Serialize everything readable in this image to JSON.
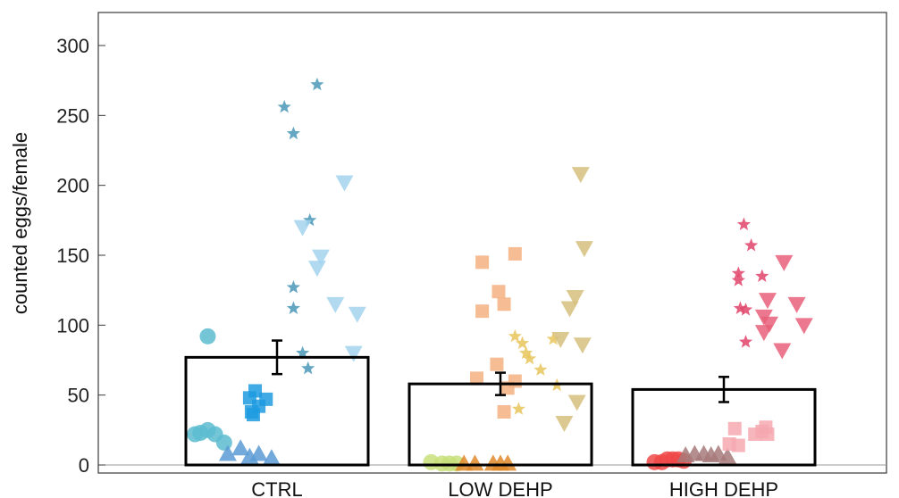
{
  "chart_data": {
    "type": "bar",
    "title": "",
    "xlabel": "",
    "ylabel": "counted eggs/female",
    "ylim": [
      -10,
      325
    ],
    "yticks": [
      0,
      50,
      100,
      150,
      200,
      250,
      300
    ],
    "grid": false,
    "categories": [
      "CTRL",
      "LOW DEHP",
      "HIGH DEHP"
    ],
    "means": [
      77,
      58,
      54
    ],
    "errors": [
      12,
      8,
      9
    ],
    "series": [
      {
        "group": "CTRL",
        "marker": "circle",
        "color": "#5cbcd0",
        "points": [
          [
            -0.38,
            92
          ],
          [
            -0.42,
            23
          ],
          [
            -0.38,
            25
          ],
          [
            -0.34,
            22
          ],
          [
            -0.29,
            16
          ],
          [
            -0.45,
            22
          ]
        ]
      },
      {
        "group": "CTRL",
        "marker": "triangle-up",
        "color": "#5b9bd5",
        "points": [
          [
            -0.27,
            8
          ],
          [
            -0.2,
            12
          ],
          [
            -0.15,
            6
          ],
          [
            -0.1,
            8
          ],
          [
            -0.03,
            5
          ]
        ]
      },
      {
        "group": "CTRL",
        "marker": "square",
        "color": "#1f9be0",
        "points": [
          [
            -0.15,
            48
          ],
          [
            -0.12,
            53
          ],
          [
            -0.1,
            42
          ],
          [
            -0.13,
            36
          ],
          [
            -0.06,
            47
          ],
          [
            -0.14,
            38
          ]
        ]
      },
      {
        "group": "CTRL",
        "marker": "star",
        "color": "#4a96b8",
        "points": [
          [
            0.04,
            256
          ],
          [
            0.09,
            237
          ],
          [
            0.22,
            272
          ],
          [
            0.18,
            175
          ],
          [
            0.09,
            127
          ],
          [
            0.09,
            112
          ],
          [
            0.14,
            80
          ],
          [
            0.17,
            69
          ]
        ]
      },
      {
        "group": "CTRL",
        "marker": "triangle-down",
        "color": "#a3d3ee",
        "points": [
          [
            0.37,
            202
          ],
          [
            0.14,
            170
          ],
          [
            0.24,
            149
          ],
          [
            0.22,
            141
          ],
          [
            0.32,
            115
          ],
          [
            0.44,
            108
          ],
          [
            0.42,
            80
          ]
        ]
      },
      {
        "group": "LOW DEHP",
        "marker": "circle",
        "color": "#c8e07a",
        "points": [
          [
            -0.38,
            2
          ],
          [
            -0.32,
            1
          ],
          [
            -0.28,
            1
          ],
          [
            -0.24,
            1
          ]
        ]
      },
      {
        "group": "LOW DEHP",
        "marker": "triangle-up",
        "color": "#e0882a",
        "points": [
          [
            -0.2,
            1
          ],
          [
            -0.14,
            1
          ],
          [
            -0.04,
            1
          ],
          [
            0.0,
            1
          ],
          [
            0.04,
            1
          ]
        ]
      },
      {
        "group": "LOW DEHP",
        "marker": "square",
        "color": "#f5b283",
        "points": [
          [
            -0.1,
            145
          ],
          [
            0.08,
            151
          ],
          [
            -0.01,
            124
          ],
          [
            0.02,
            115
          ],
          [
            -0.1,
            110
          ],
          [
            -0.02,
            72
          ],
          [
            -0.13,
            62
          ],
          [
            0.08,
            60
          ],
          [
            0.04,
            55
          ],
          [
            0.02,
            38
          ]
        ]
      },
      {
        "group": "LOW DEHP",
        "marker": "star",
        "color": "#e8c45a",
        "points": [
          [
            0.08,
            92
          ],
          [
            0.12,
            87
          ],
          [
            0.14,
            80
          ],
          [
            0.16,
            76
          ],
          [
            0.22,
            68
          ],
          [
            0.1,
            40
          ],
          [
            0.29,
            90
          ],
          [
            0.31,
            57
          ]
        ]
      },
      {
        "group": "LOW DEHP",
        "marker": "triangle-down",
        "color": "#d6c07e",
        "points": [
          [
            0.44,
            208
          ],
          [
            0.46,
            155
          ],
          [
            0.41,
            120
          ],
          [
            0.38,
            112
          ],
          [
            0.33,
            90
          ],
          [
            0.45,
            86
          ],
          [
            0.42,
            45
          ],
          [
            0.35,
            30
          ]
        ]
      },
      {
        "group": "HIGH DEHP",
        "marker": "circle",
        "color": "#f04848",
        "points": [
          [
            -0.38,
            2
          ],
          [
            -0.34,
            2
          ],
          [
            -0.31,
            4
          ],
          [
            -0.28,
            4
          ],
          [
            -0.25,
            4
          ],
          [
            -0.22,
            3
          ]
        ]
      },
      {
        "group": "HIGH DEHP",
        "marker": "triangle-up",
        "color": "#a77a7a",
        "points": [
          [
            -0.21,
            7
          ],
          [
            -0.16,
            8
          ],
          [
            -0.11,
            8
          ],
          [
            -0.07,
            7
          ],
          [
            -0.03,
            8
          ],
          [
            0.02,
            6
          ]
        ]
      },
      {
        "group": "HIGH DEHP",
        "marker": "square",
        "color": "#f6a8b0",
        "points": [
          [
            0.06,
            26
          ],
          [
            0.03,
            15
          ],
          [
            0.08,
            14
          ],
          [
            0.17,
            22
          ],
          [
            0.21,
            24
          ],
          [
            0.23,
            27
          ],
          [
            0.24,
            22
          ]
        ]
      },
      {
        "group": "HIGH DEHP",
        "marker": "star",
        "color": "#e0446a",
        "points": [
          [
            0.11,
            172
          ],
          [
            0.15,
            157
          ],
          [
            0.08,
            137
          ],
          [
            0.08,
            132
          ],
          [
            0.09,
            112
          ],
          [
            0.12,
            111
          ],
          [
            0.21,
            135
          ],
          [
            0.12,
            88
          ]
        ]
      },
      {
        "group": "HIGH DEHP",
        "marker": "triangle-down",
        "color": "#e8607a",
        "points": [
          [
            0.33,
            145
          ],
          [
            0.24,
            118
          ],
          [
            0.22,
            106
          ],
          [
            0.25,
            101
          ],
          [
            0.22,
            95
          ],
          [
            0.4,
            115
          ],
          [
            0.44,
            100
          ],
          [
            0.32,
            82
          ]
        ]
      }
    ]
  }
}
